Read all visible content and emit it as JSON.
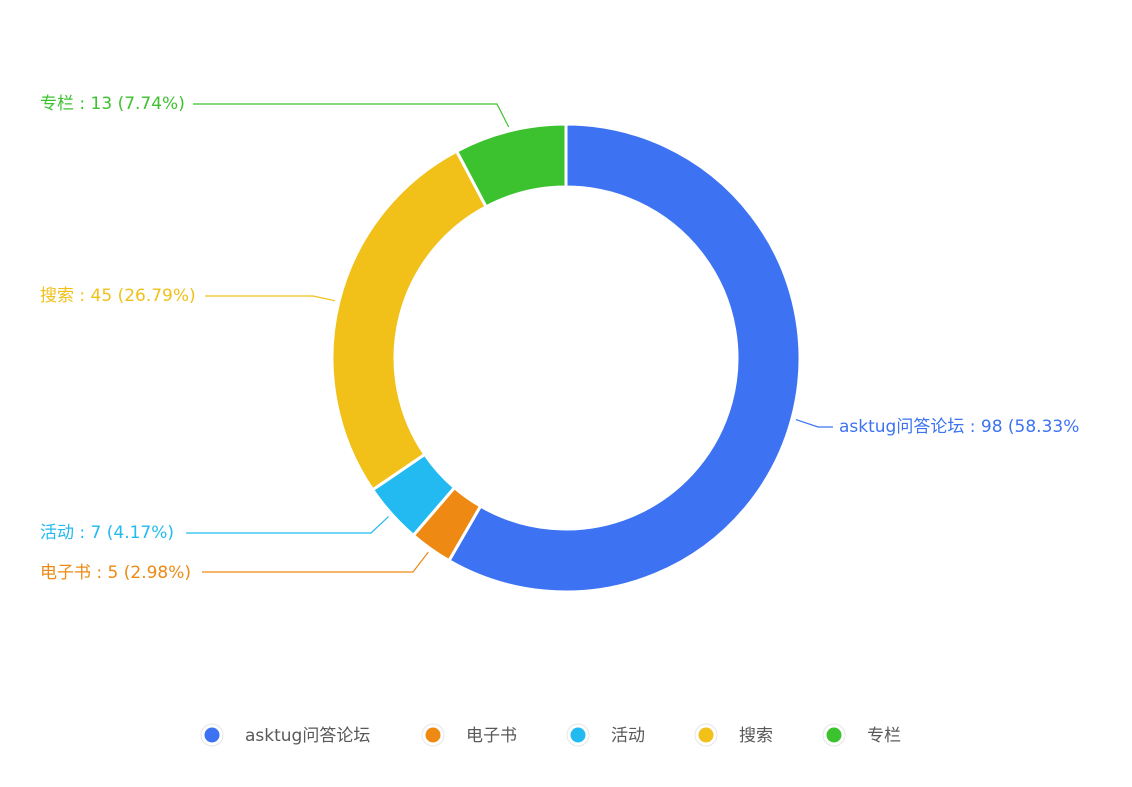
{
  "chart_data": {
    "type": "pie",
    "style": "donut",
    "categories": [
      "asktug问答论坛",
      "电子书",
      "活动",
      "搜索",
      "专栏"
    ],
    "values": [
      98,
      5,
      7,
      45,
      13
    ],
    "percentages": [
      "58.33%",
      "2.98%",
      "4.17%",
      "26.79%",
      "7.74%"
    ],
    "colors": [
      "#3D73F2",
      "#EE8A13",
      "#22BAF0",
      "#F1C019",
      "#3DC22F"
    ],
    "labels": [
      "asktug问答论坛 : 98 (58.33%",
      "电子书 : 5 (2.98%)",
      "活动 : 7 (4.17%)",
      "搜索 : 45 (26.79%)",
      "专栏 : 13 (7.74%)"
    ],
    "legend_position": "bottom-center",
    "legend": [
      "asktug问答论坛",
      "电子书",
      "活动",
      "搜索",
      "专栏"
    ]
  }
}
